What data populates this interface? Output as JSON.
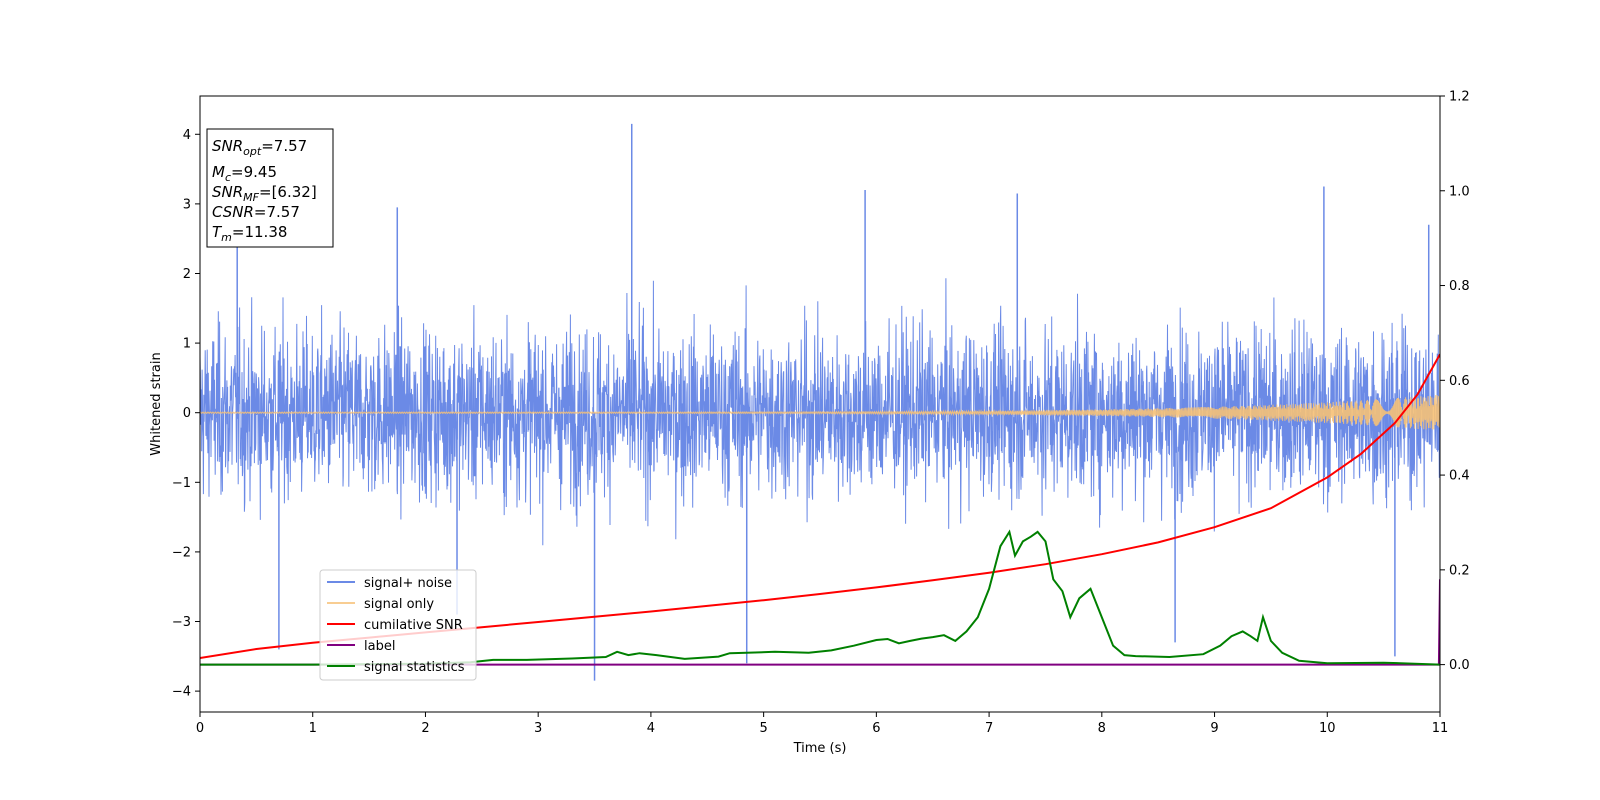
{
  "chart_data": {
    "type": "line",
    "title": "",
    "xlabel": "Time (s)",
    "ylabel": "Whitened strain",
    "xlim": [
      0,
      11
    ],
    "ylim": [
      -4.3,
      4.55
    ],
    "y2lim": [
      -0.1,
      1.2
    ],
    "xticks": [
      0,
      1,
      2,
      3,
      4,
      5,
      6,
      7,
      8,
      9,
      10,
      11
    ],
    "yticks": [
      -4,
      -3,
      -2,
      -1,
      0,
      1,
      2,
      3,
      4
    ],
    "y2ticks": [
      0.0,
      0.2,
      0.4,
      0.6,
      0.8,
      1.0,
      1.2
    ],
    "xtick_labels": [
      "0",
      "1",
      "2",
      "3",
      "4",
      "5",
      "6",
      "7",
      "8",
      "9",
      "10",
      "11"
    ],
    "ytick_labels": [
      "−4",
      "−3",
      "−2",
      "−1",
      "0",
      "1",
      "2",
      "3",
      "4"
    ],
    "y2tick_labels": [
      "0.0",
      "0.2",
      "0.4",
      "0.6",
      "0.8",
      "1.0",
      "1.2"
    ],
    "grid": false,
    "legend_position": "lower-left",
    "series": [
      {
        "name": "signal+ noise",
        "color": "#6b8ae6",
        "axis": "left",
        "kind": "noise",
        "amplitude_sigma": 0.85,
        "outliers": [
          [
            0.33,
            2.7
          ],
          [
            0.7,
            -3.4
          ],
          [
            1.75,
            2.95
          ],
          [
            2.28,
            -2.9
          ],
          [
            3.5,
            -3.85
          ],
          [
            3.83,
            4.15
          ],
          [
            4.85,
            -3.6
          ],
          [
            5.9,
            3.2
          ],
          [
            7.25,
            3.15
          ],
          [
            8.65,
            -3.3
          ],
          [
            9.97,
            3.25
          ],
          [
            10.6,
            -3.5
          ],
          [
            10.9,
            2.7
          ]
        ]
      },
      {
        "name": "signal only",
        "color": "#f6c177",
        "axis": "left",
        "kind": "chirp",
        "amplitude_start": 0.01,
        "amplitude_end": 0.26
      },
      {
        "name": "cumilative SNR",
        "color": "#ff0000",
        "axis": "right",
        "x": [
          0,
          0.5,
          1,
          1.5,
          2,
          2.5,
          3,
          3.5,
          4,
          4.5,
          5,
          5.5,
          6,
          6.5,
          7,
          7.5,
          8,
          8.5,
          9,
          9.5,
          10,
          10.3,
          10.6,
          10.8,
          11
        ],
        "y": [
          0.014,
          0.033,
          0.046,
          0.057,
          0.068,
          0.079,
          0.09,
          0.101,
          0.112,
          0.124,
          0.136,
          0.149,
          0.163,
          0.178,
          0.194,
          0.212,
          0.233,
          0.258,
          0.29,
          0.33,
          0.395,
          0.445,
          0.51,
          0.57,
          0.655
        ]
      },
      {
        "name": "label",
        "color": "#800080",
        "axis": "right",
        "x": [
          0,
          10.99,
          11
        ],
        "y": [
          0,
          0,
          0.18
        ]
      },
      {
        "name": "signal statistics",
        "color": "#008000",
        "axis": "right",
        "x": [
          0,
          1,
          2,
          2.4,
          2.6,
          2.9,
          3.3,
          3.6,
          3.7,
          3.8,
          3.9,
          4.05,
          4.3,
          4.6,
          4.7,
          4.85,
          5.1,
          5.4,
          5.6,
          5.8,
          6.0,
          6.1,
          6.2,
          6.3,
          6.4,
          6.5,
          6.6,
          6.7,
          6.8,
          6.9,
          7.0,
          7.1,
          7.18,
          7.23,
          7.3,
          7.37,
          7.43,
          7.5,
          7.57,
          7.65,
          7.72,
          7.8,
          7.9,
          8.0,
          8.1,
          8.2,
          8.3,
          8.6,
          8.9,
          9.05,
          9.15,
          9.25,
          9.32,
          9.38,
          9.43,
          9.5,
          9.6,
          9.75,
          10,
          10.5,
          11
        ],
        "y": [
          0,
          0,
          0.002,
          0.005,
          0.01,
          0.01,
          0.013,
          0.016,
          0.027,
          0.02,
          0.024,
          0.02,
          0.012,
          0.017,
          0.024,
          0.025,
          0.027,
          0.025,
          0.03,
          0.04,
          0.052,
          0.054,
          0.045,
          0.05,
          0.055,
          0.058,
          0.062,
          0.05,
          0.07,
          0.1,
          0.16,
          0.25,
          0.28,
          0.23,
          0.26,
          0.27,
          0.28,
          0.26,
          0.18,
          0.155,
          0.1,
          0.14,
          0.16,
          0.1,
          0.04,
          0.02,
          0.018,
          0.016,
          0.022,
          0.04,
          0.06,
          0.07,
          0.06,
          0.05,
          0.1,
          0.05,
          0.025,
          0.008,
          0.003,
          0.004,
          0.0
        ]
      }
    ],
    "annotation_lines": [
      "=7.57",
      "=9.45",
      "=[6.32]",
      "=7.57",
      "=11.38"
    ]
  },
  "info_box": {
    "line1_base": "SNR",
    "line1_sub": "opt",
    "line1_value": "=7.57",
    "line2_base": "M",
    "line2_sub": "c",
    "line2_value": "=9.45",
    "line3_base": "SNR",
    "line3_sub": "MF",
    "line3_value": "=[6.32]",
    "line4_base": "CSNR",
    "line4_value": "=7.57",
    "line5_base": "T",
    "line5_sub": "m",
    "line5_value": "=11.38"
  },
  "legend": {
    "items": [
      {
        "label": "signal+ noise",
        "color": "#6b8ae6"
      },
      {
        "label": "signal only",
        "color": "#f6c177"
      },
      {
        "label": "cumilative SNR",
        "color": "#ff0000"
      },
      {
        "label": "label",
        "color": "#800080"
      },
      {
        "label": "signal statistics",
        "color": "#008000"
      }
    ]
  }
}
